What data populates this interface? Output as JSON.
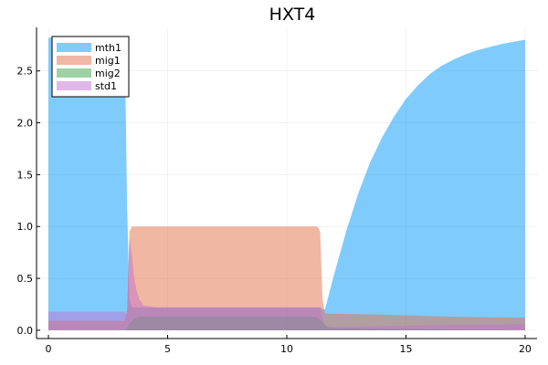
{
  "chart_data": {
    "type": "area",
    "title": "HXT4",
    "xlabel": "",
    "ylabel": "",
    "xlim": [
      -0.5,
      20.5
    ],
    "ylim": [
      -0.08,
      2.92
    ],
    "xticks": [
      0,
      5,
      10,
      15,
      20
    ],
    "yticks": [
      0.0,
      0.5,
      1.0,
      1.5,
      2.0,
      2.5
    ],
    "xtick_labels": [
      "0",
      "5",
      "10",
      "15",
      "20"
    ],
    "ytick_labels": [
      "0.0",
      "0.5",
      "1.0",
      "1.5",
      "2.0",
      "2.5"
    ],
    "grid": true,
    "legend_position": "top-left",
    "series": [
      {
        "name": "mth1",
        "color": "#009AFA",
        "x": [
          0,
          0.3,
          3.0,
          3.2,
          3.3,
          3.4,
          3.5,
          11.4,
          11.5,
          11.6,
          12.0,
          12.5,
          13.0,
          13.5,
          14.0,
          14.5,
          15.0,
          15.5,
          16.0,
          16.5,
          17.0,
          17.5,
          18.0,
          18.5,
          19.0,
          19.5,
          20.0
        ],
        "values": [
          2.82,
          2.83,
          2.83,
          2.8,
          1.2,
          0.3,
          0.22,
          0.22,
          0.2,
          0.2,
          0.55,
          0.96,
          1.32,
          1.62,
          1.86,
          2.06,
          2.23,
          2.36,
          2.47,
          2.55,
          2.61,
          2.66,
          2.7,
          2.73,
          2.76,
          2.78,
          2.8
        ]
      },
      {
        "name": "mig1",
        "color": "#E26F46",
        "x": [
          0,
          3.2,
          3.3,
          3.4,
          3.5,
          3.6,
          3.8,
          4.0,
          4.5,
          5.0,
          11.3,
          11.4,
          11.5,
          11.6,
          12.0,
          14.0,
          17.0,
          20.0
        ],
        "values": [
          0.09,
          0.09,
          0.2,
          0.95,
          1.0,
          1.0,
          1.0,
          1.0,
          1.0,
          1.0,
          1.0,
          0.95,
          0.3,
          0.16,
          0.16,
          0.15,
          0.13,
          0.12
        ]
      },
      {
        "name": "mig2",
        "color": "#3DA44D",
        "x": [
          0,
          3.2,
          3.4,
          3.6,
          3.8,
          4.0,
          11.2,
          11.4,
          11.6,
          11.8,
          20.0
        ],
        "values": [
          0.0,
          0.0,
          0.06,
          0.11,
          0.13,
          0.13,
          0.13,
          0.1,
          0.05,
          0.02,
          0.0
        ]
      },
      {
        "name": "std1",
        "color": "#C271D2",
        "x": [
          0,
          3.2,
          3.3,
          3.4,
          3.5,
          3.6,
          3.7,
          3.8,
          4.0,
          4.5,
          5.0,
          11.4,
          11.6,
          12.0,
          14.0,
          17.0,
          20.0
        ],
        "values": [
          0.18,
          0.18,
          0.15,
          0.9,
          0.72,
          0.5,
          0.38,
          0.3,
          0.24,
          0.22,
          0.22,
          0.22,
          0.04,
          0.03,
          0.04,
          0.05,
          0.06
        ]
      }
    ]
  }
}
